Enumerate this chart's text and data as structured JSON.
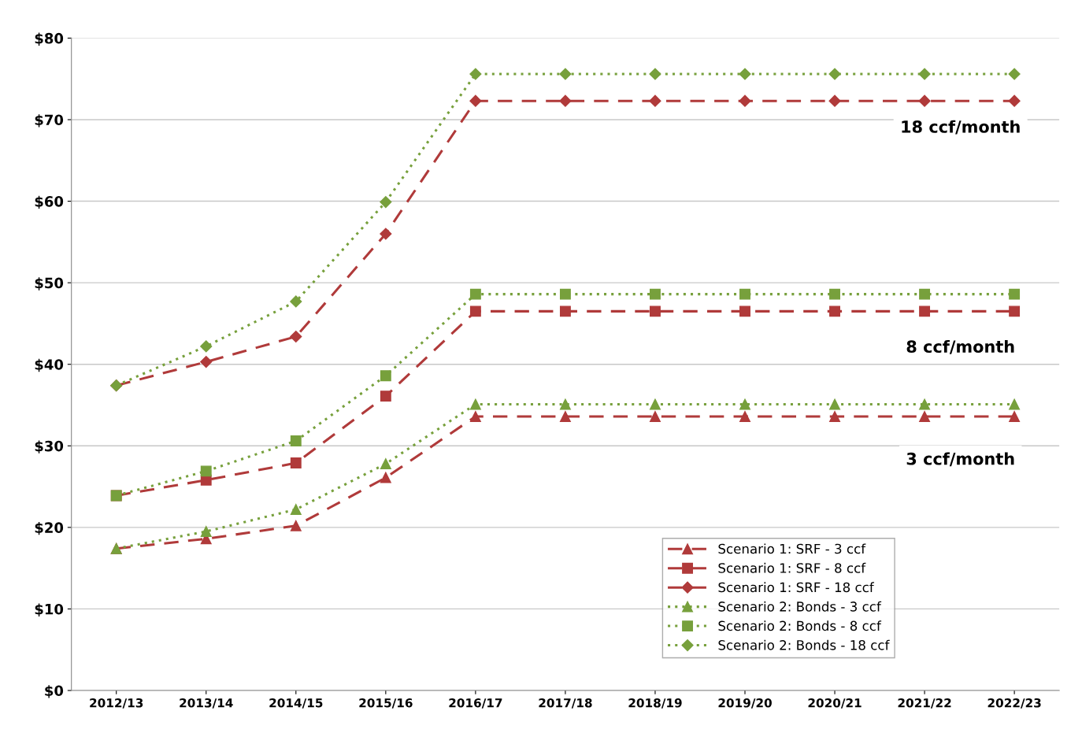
{
  "chart_data": {
    "type": "line",
    "categories": [
      "2012/13",
      "2013/14",
      "2014/15",
      "2015/16",
      "2016/17",
      "2017/18",
      "2018/19",
      "2019/20",
      "2020/21",
      "2021/22",
      "2022/23"
    ],
    "ylim": [
      0,
      80
    ],
    "yticks": [
      {
        "value": 0,
        "label": "$0"
      },
      {
        "value": 10,
        "label": "$10"
      },
      {
        "value": 20,
        "label": "$20"
      },
      {
        "value": 30,
        "label": "$30"
      },
      {
        "value": 40,
        "label": "$40"
      },
      {
        "value": 50,
        "label": "$50"
      },
      {
        "value": 60,
        "label": "$60"
      },
      {
        "value": 70,
        "label": "$70"
      },
      {
        "value": 80,
        "label": "$80"
      }
    ],
    "grid": "y",
    "legend": "bottom right",
    "series": [
      {
        "name": "Scenario 1: SRF - 3 ccf",
        "color": "#b03a3a",
        "marker": "triangle",
        "line_style": "dashed",
        "values": [
          17.4,
          18.6,
          20.2,
          26.1,
          33.6,
          33.6,
          33.6,
          33.6,
          33.6,
          33.6,
          33.6
        ]
      },
      {
        "name": "Scenario 1: SRF - 8 ccf",
        "color": "#b03a3a",
        "marker": "square",
        "line_style": "dashed",
        "values": [
          23.9,
          25.8,
          27.9,
          36.1,
          46.5,
          46.5,
          46.5,
          46.5,
          46.5,
          46.5,
          46.5
        ]
      },
      {
        "name": "Scenario 1: SRF - 18 ccf",
        "color": "#b03a3a",
        "marker": "diamond",
        "line_style": "dashed",
        "values": [
          37.4,
          40.3,
          43.4,
          56.0,
          72.3,
          72.3,
          72.3,
          72.3,
          72.3,
          72.3,
          72.3
        ]
      },
      {
        "name": "Scenario 2: Bonds - 3 ccf",
        "color": "#77a03c",
        "marker": "triangle",
        "line_style": "dotted",
        "values": [
          17.4,
          19.5,
          22.2,
          27.8,
          35.1,
          35.1,
          35.1,
          35.1,
          35.1,
          35.1,
          35.1
        ]
      },
      {
        "name": "Scenario 2: Bonds - 8 ccf",
        "color": "#77a03c",
        "marker": "square",
        "line_style": "dotted",
        "values": [
          23.9,
          26.9,
          30.6,
          38.6,
          48.6,
          48.6,
          48.6,
          48.6,
          48.6,
          48.6,
          48.6
        ]
      },
      {
        "name": "Scenario 2: Bonds - 18 ccf",
        "color": "#77a03c",
        "marker": "diamond",
        "line_style": "dotted",
        "values": [
          37.4,
          42.2,
          47.7,
          59.9,
          75.6,
          75.6,
          75.6,
          75.6,
          75.6,
          75.6,
          75.6
        ]
      }
    ],
    "annotations": [
      "18 ccf/month",
      "8 ccf/month",
      "3 ccf/month"
    ]
  }
}
